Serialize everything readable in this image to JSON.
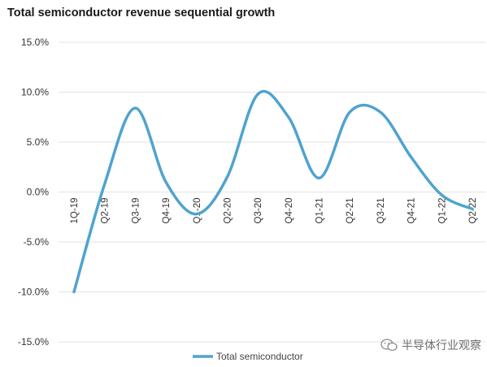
{
  "chart_data": {
    "type": "line",
    "title": "Total semiconductor revenue sequential growth",
    "categories": [
      "1Q-19",
      "Q2-19",
      "Q3-19",
      "Q4-19",
      "Q1-20",
      "Q2-20",
      "Q3-20",
      "Q4-20",
      "Q1-21",
      "Q2-21",
      "Q3-21",
      "Q4-21",
      "Q1-22",
      "Q2-22"
    ],
    "series": [
      {
        "name": "Total semiconductor",
        "color": "#4fa3cf",
        "values": [
          -10.0,
          0.8,
          8.4,
          1.0,
          -2.2,
          1.5,
          9.8,
          7.5,
          1.4,
          8.0,
          8.0,
          3.5,
          -0.3,
          -1.7
        ]
      }
    ],
    "ylim": [
      -15,
      15
    ],
    "yticks": [
      15,
      10,
      5,
      0,
      -5,
      -10,
      -15
    ],
    "ytick_labels": [
      "15.0%",
      "10.0%",
      "5.0%",
      "0.0%",
      "-5.0%",
      "-10.0%",
      "-15.0%"
    ],
    "grid": true,
    "legend": "bottom-center",
    "xlabel": "",
    "ylabel": ""
  },
  "watermark": {
    "text": "半导体行业观察",
    "icon": "wechat-logo-icon"
  }
}
